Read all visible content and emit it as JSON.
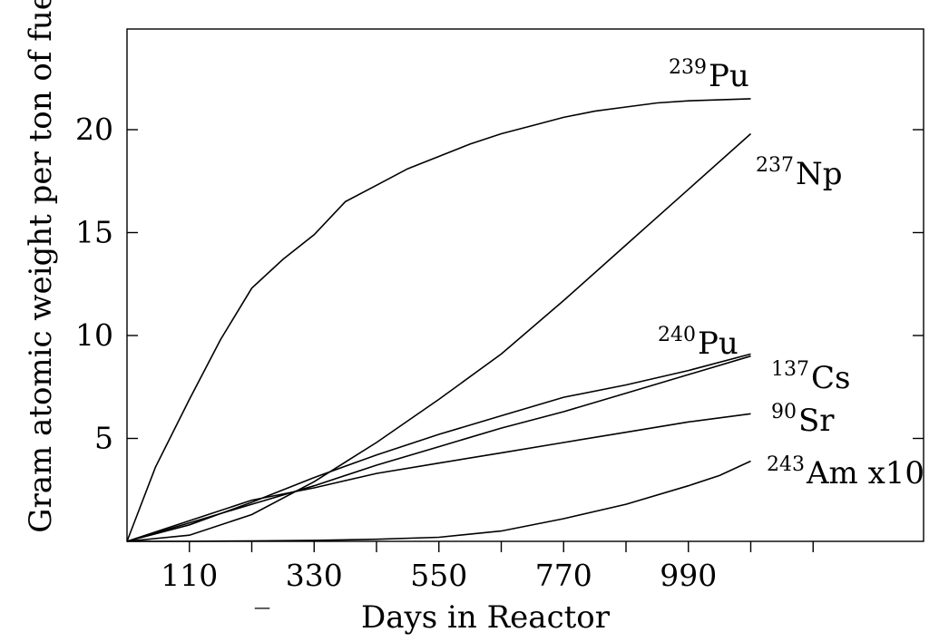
{
  "chart_data": {
    "type": "line",
    "title": "",
    "xlabel": "Days in Reactor",
    "ylabel": "Gram atomic weight per ton of fuel",
    "xlim": [
      0,
      1400
    ],
    "ylim": [
      0,
      25
    ],
    "x_ticks": [
      110,
      330,
      550,
      770,
      990
    ],
    "x_minor_ticks": [
      220,
      440,
      660,
      880,
      1100,
      1210
    ],
    "y_ticks": [
      5,
      10,
      15,
      20
    ],
    "grid": false,
    "legend": "inline labels at line ends",
    "stray_mark": "_",
    "series": [
      {
        "name": "239Pu",
        "isotope_mass": "239",
        "symbol": "Pu",
        "x": [
          0,
          50,
          110,
          165,
          220,
          275,
          330,
          385,
          440,
          495,
          550,
          605,
          660,
          715,
          770,
          825,
          880,
          935,
          990,
          1045,
          1100
        ],
        "y": [
          0,
          3.6,
          6.9,
          9.8,
          12.3,
          13.7,
          14.9,
          16.5,
          17.3,
          18.1,
          18.7,
          19.3,
          19.8,
          20.2,
          20.6,
          20.9,
          21.1,
          21.3,
          21.4,
          21.45,
          21.5
        ]
      },
      {
        "name": "237Np",
        "isotope_mass": "237",
        "symbol": "Np",
        "x": [
          0,
          110,
          220,
          330,
          440,
          550,
          660,
          770,
          880,
          990,
          1100
        ],
        "y": [
          0,
          0.3,
          1.3,
          2.9,
          4.8,
          6.9,
          9.1,
          11.7,
          14.4,
          17.1,
          19.8
        ]
      },
      {
        "name": "240Pu",
        "isotope_mass": "240",
        "symbol": "Pu",
        "x": [
          0,
          110,
          220,
          330,
          440,
          550,
          660,
          770,
          880,
          990,
          1100
        ],
        "y": [
          0,
          0.8,
          1.9,
          3.1,
          4.2,
          5.2,
          6.1,
          7.0,
          7.6,
          8.3,
          9.1
        ]
      },
      {
        "name": "137Cs",
        "isotope_mass": "137",
        "symbol": "Cs",
        "x": [
          0,
          110,
          220,
          330,
          440,
          550,
          660,
          770,
          880,
          990,
          1100
        ],
        "y": [
          0,
          0.9,
          1.8,
          2.7,
          3.7,
          4.6,
          5.5,
          6.3,
          7.2,
          8.1,
          9.0
        ]
      },
      {
        "name": "90Sr",
        "isotope_mass": "90",
        "symbol": "Sr",
        "x": [
          0,
          110,
          220,
          330,
          440,
          550,
          660,
          770,
          880,
          990,
          1100
        ],
        "y": [
          0,
          1.0,
          2.0,
          2.6,
          3.3,
          3.8,
          4.3,
          4.8,
          5.3,
          5.8,
          6.2
        ]
      },
      {
        "name": "243Am x10",
        "isotope_mass": "243",
        "symbol": "Am x10",
        "x": [
          0,
          110,
          220,
          330,
          440,
          550,
          660,
          770,
          880,
          990,
          1045,
          1100
        ],
        "y": [
          0,
          0.0,
          0.02,
          0.05,
          0.1,
          0.2,
          0.5,
          1.1,
          1.8,
          2.7,
          3.2,
          3.9
        ]
      }
    ]
  }
}
